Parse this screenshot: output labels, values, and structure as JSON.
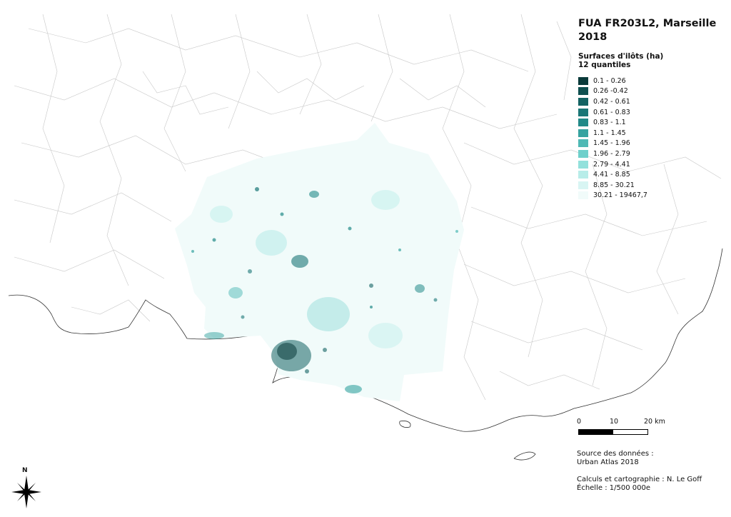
{
  "map": {
    "title_line1": "FUA FR203L2, Marseille",
    "title_line2": "2018",
    "legend": {
      "title": "Surfaces d'ilôts (ha)",
      "subtitle": "12 quantiles",
      "classes": [
        {
          "label": "0.1 - 0.26",
          "color": "#0a3a3a"
        },
        {
          "label": "0.26 -0.42",
          "color": "#0f4f4f"
        },
        {
          "label": "0.42 - 0.61",
          "color": "#136262"
        },
        {
          "label": "0.61 - 0.83",
          "color": "#1a7676"
        },
        {
          "label": "0.83 - 1.1",
          "color": "#228a88"
        },
        {
          "label": "1.1 - 1.45",
          "color": "#36a3a0"
        },
        {
          "label": "1.45 - 1.96",
          "color": "#4fb9b5"
        },
        {
          "label": "1.96 - 2.79",
          "color": "#6fd0cb"
        },
        {
          "label": "2.79 - 4.41",
          "color": "#93e1dc"
        },
        {
          "label": "4.41 - 8.85",
          "color": "#b8ede9"
        },
        {
          "label": "8.85 - 30.21",
          "color": "#d8f5f3"
        },
        {
          "label": "30.21 - 19467,7",
          "color": "#f1fbfa"
        }
      ]
    },
    "scale": {
      "tick0": "0",
      "tick1": "10",
      "tick2": "20 km"
    },
    "source_line1": "Source des données :",
    "source_line2": "Urban Atlas 2018",
    "credits_line1": "Calculs et cartographie : N. Le Goff",
    "credits_line2": "Échelle : 1/500 000e",
    "north_label": "N"
  }
}
